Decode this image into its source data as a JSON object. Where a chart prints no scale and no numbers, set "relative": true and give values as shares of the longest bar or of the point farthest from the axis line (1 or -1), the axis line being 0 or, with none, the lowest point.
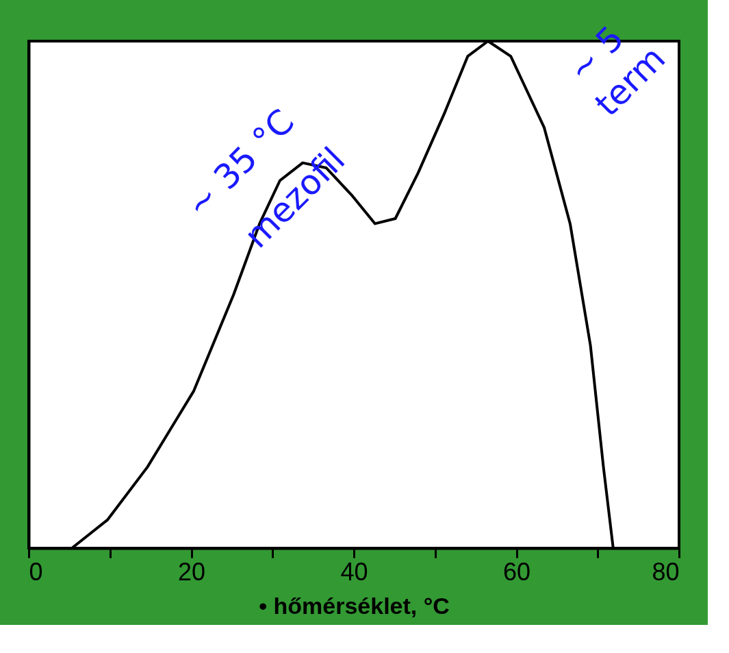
{
  "chart_data": {
    "type": "line",
    "relative": true,
    "xlabel": "• hőmérséklet, °C",
    "x": [
      5.3,
      9.7,
      14.6,
      20.3,
      25.2,
      28.4,
      30.9,
      33.7,
      36.6,
      39.8,
      42.6,
      45.1,
      47.9,
      51.2,
      54.0,
      56.5,
      59.3,
      63.4,
      66.6,
      69.1,
      70.7,
      71.9
    ],
    "series": [
      {
        "color": "#000000",
        "values": [
          0,
          0.056,
          0.16,
          0.31,
          0.5,
          0.64,
          0.725,
          0.76,
          0.75,
          0.695,
          0.64,
          0.65,
          0.74,
          0.86,
          0.97,
          1,
          0.97,
          0.83,
          0.64,
          0.4,
          0.16,
          0
        ]
      }
    ],
    "xlim": [
      0,
      80
    ],
    "xticks": [
      0,
      {
        "value": 10,
        "label": null
      },
      20,
      {
        "value": 30,
        "label": null
      },
      40,
      {
        "value": 50,
        "label": null
      },
      60,
      {
        "value": 70,
        "label": null
      },
      80
    ],
    "annotations": [
      "~ 35 °C",
      "mezofil",
      "~ 5",
      "term"
    ],
    "grid": false,
    "marker": "none",
    "line_style": "solid"
  }
}
